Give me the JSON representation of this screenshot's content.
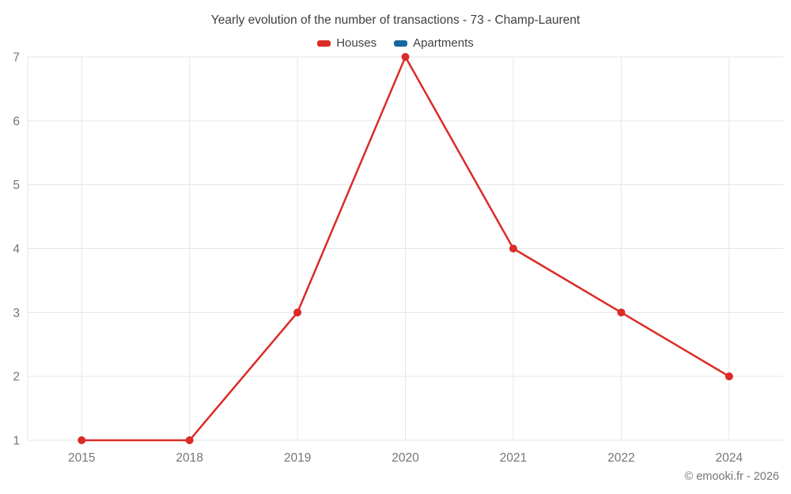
{
  "chart": {
    "title": "Yearly evolution of the number of transactions - 73 - Champ-Laurent",
    "copyright": "© emooki.fr - 2026"
  },
  "chart_data": {
    "type": "line",
    "title": "Yearly evolution of the number of transactions - 73 - Champ-Laurent",
    "categories": [
      "2015",
      "2018",
      "2019",
      "2020",
      "2021",
      "2022",
      "2024"
    ],
    "series": [
      {
        "name": "Houses",
        "color": "#db2b27",
        "values": [
          1,
          1,
          3,
          7,
          4,
          3,
          2
        ]
      },
      {
        "name": "Apartments",
        "color": "#15689f",
        "values": []
      }
    ],
    "xlabel": "",
    "ylabel": "",
    "ylim": [
      1,
      7
    ],
    "yticks": [
      1,
      2,
      3,
      4,
      5,
      6,
      7
    ],
    "grid": true,
    "legend_position": "top",
    "gridline_color": "#e6e6e6",
    "tick_label_color": "#757575",
    "marker_radius": 5
  }
}
